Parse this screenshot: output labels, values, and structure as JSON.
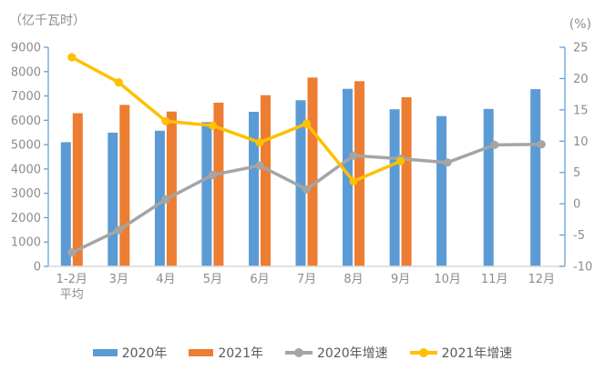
{
  "chart_data": {
    "type": "combo-bar-line",
    "categories": [
      "1-2月\n平均",
      "3月",
      "4月",
      "5月",
      "6月",
      "7月",
      "8月",
      "9月",
      "10月",
      "11月",
      "12月"
    ],
    "left_axis": {
      "label": "（亿千瓦时）",
      "min": 0,
      "max": 9000,
      "tick_step": 1000,
      "tick_labels": [
        "0",
        "1000",
        "2000",
        "3000",
        "4000",
        "5000",
        "6000",
        "7000",
        "8000",
        "9000"
      ]
    },
    "right_axis": {
      "label": "(%)",
      "min": -10,
      "max": 25,
      "tick_step": 5,
      "tick_labels": [
        "-10",
        "-5",
        "0",
        "5",
        "10",
        "15",
        "20",
        "25"
      ]
    },
    "series": [
      {
        "name": "2020年",
        "type": "bar",
        "axis": "left",
        "color": "#5B9BD5",
        "values": [
          5102,
          5493,
          5572,
          5926,
          6350,
          6824,
          7294,
          6454,
          6172,
          6467,
          7277
        ]
      },
      {
        "name": "2021年",
        "type": "bar",
        "axis": "left",
        "color": "#ED7D31",
        "values": [
          6294,
          6631,
          6361,
          6724,
          7033,
          7758,
          7607,
          6947,
          null,
          null,
          null
        ]
      },
      {
        "name": "2020年增速",
        "type": "line",
        "axis": "right",
        "color": "#A5A5A5",
        "values": [
          -7.8,
          -4.2,
          0.7,
          4.6,
          6.1,
          2.3,
          7.7,
          7.2,
          6.6,
          9.4,
          9.5
        ]
      },
      {
        "name": "2021年增速",
        "type": "line",
        "axis": "right",
        "color": "#FFC000",
        "values": [
          23.4,
          19.4,
          13.2,
          12.5,
          9.8,
          12.8,
          3.6,
          6.8,
          null,
          null,
          null
        ]
      }
    ],
    "grid": false,
    "legend_position": "bottom",
    "colors": {
      "axis_line": "#5B9BD5",
      "category_axis_line": "#D9D9D9",
      "tick_text": "#8c8c8c",
      "legend_text": "#595959",
      "background": "#ffffff"
    }
  }
}
